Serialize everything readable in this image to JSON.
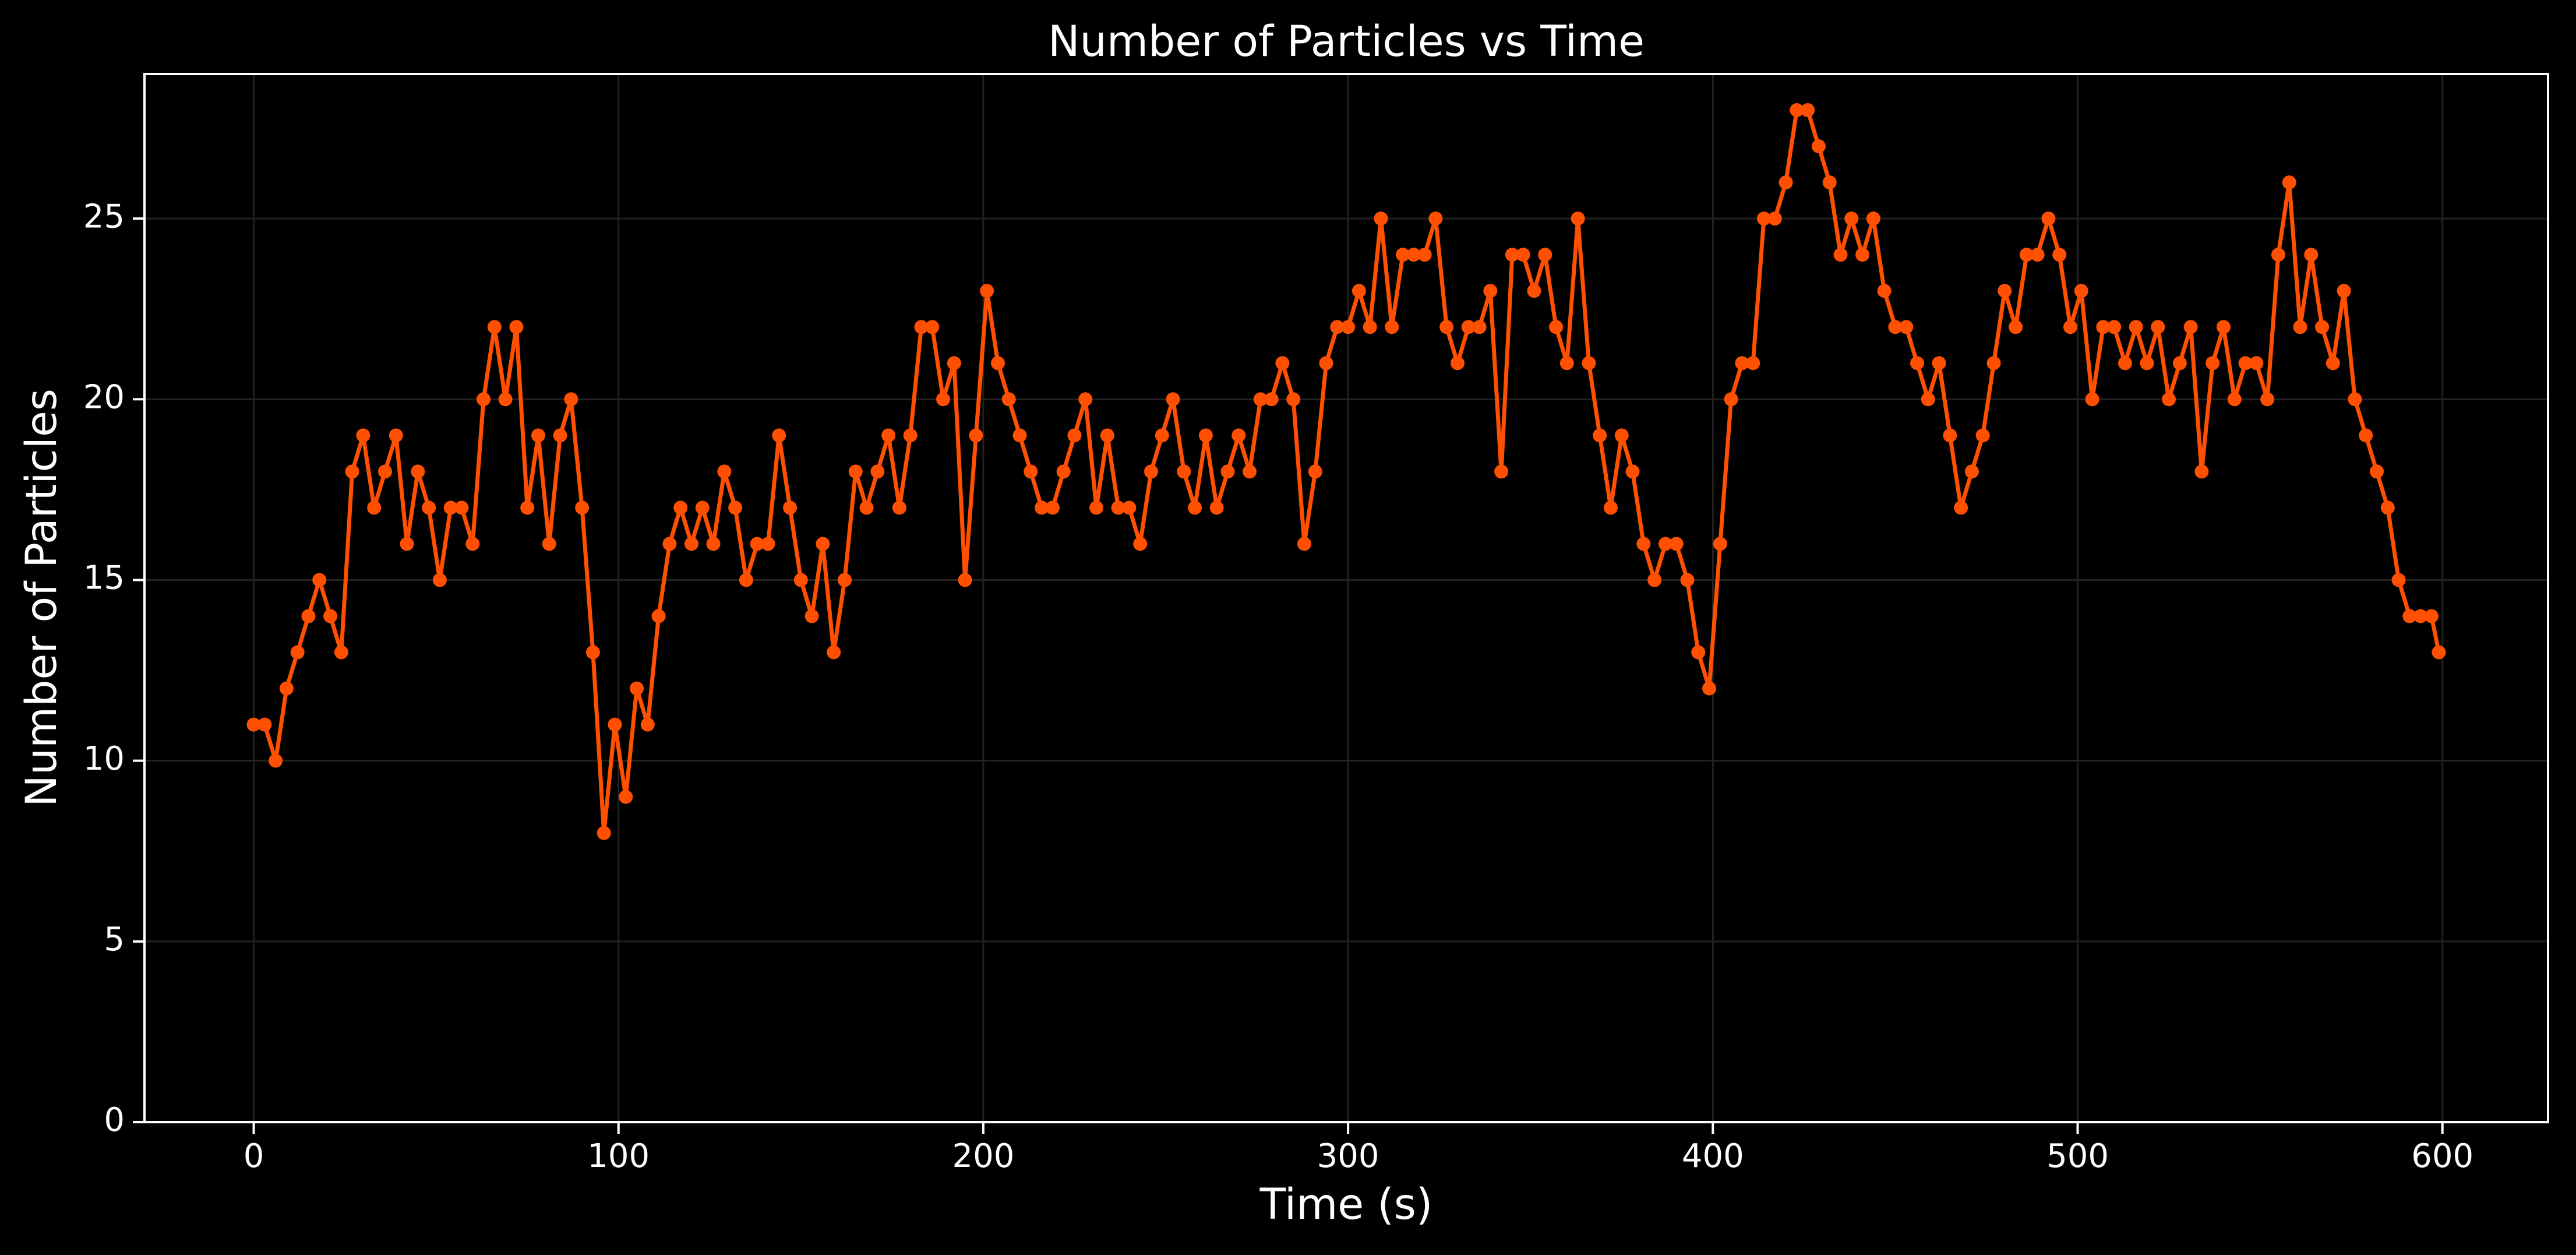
{
  "chart_data": {
    "type": "line",
    "title": "Number of Particles vs Time",
    "x_label": "Time (s)",
    "y_label": "Number of Particles",
    "x": [
      0,
      3,
      6,
      9,
      12,
      15,
      18,
      21,
      24,
      27,
      30,
      33,
      36,
      39,
      42,
      45,
      48,
      51,
      54,
      57,
      60,
      63,
      66,
      69,
      72,
      75,
      78,
      81,
      84,
      87,
      90,
      93,
      96,
      99,
      102,
      105,
      108,
      111,
      114,
      117,
      120,
      123,
      126,
      129,
      132,
      135,
      138,
      141,
      144,
      147,
      150,
      153,
      156,
      159,
      162,
      165,
      168,
      171,
      174,
      177,
      180,
      183,
      186,
      189,
      192,
      195,
      198,
      201,
      204,
      207,
      210,
      213,
      216,
      219,
      222,
      225,
      228,
      231,
      234,
      237,
      240,
      243,
      246,
      249,
      252,
      255,
      258,
      261,
      264,
      267,
      270,
      273,
      276,
      279,
      282,
      285,
      288,
      291,
      294,
      297,
      300,
      303,
      306,
      309,
      312,
      315,
      318,
      321,
      324,
      327,
      330,
      333,
      336,
      339,
      342,
      345,
      348,
      351,
      354,
      357,
      360,
      363,
      366,
      369,
      372,
      375,
      378,
      381,
      384,
      387,
      390,
      393,
      396,
      399,
      402,
      405,
      408,
      411,
      414,
      417,
      420,
      423,
      426,
      429,
      432,
      435,
      438,
      441,
      444,
      447,
      450,
      453,
      456,
      459,
      462,
      465,
      468,
      471,
      474,
      477,
      480,
      483,
      486,
      489,
      492,
      495,
      498,
      501,
      504,
      507,
      510,
      513,
      516,
      519,
      522,
      525,
      528,
      531,
      534,
      537,
      540,
      543,
      546,
      549,
      552,
      555,
      558,
      561,
      564,
      567,
      570,
      573,
      576,
      579,
      582,
      585,
      588,
      591,
      594,
      597,
      599
    ],
    "series": [
      {
        "name": "Particles",
        "color": "#ff4f00",
        "values": [
          11,
          11,
          10,
          12,
          13,
          14,
          15,
          14,
          13,
          18,
          19,
          17,
          18,
          19,
          16,
          18,
          17,
          15,
          17,
          17,
          16,
          20,
          22,
          20,
          22,
          17,
          19,
          16,
          19,
          20,
          17,
          13,
          8,
          11,
          9,
          12,
          11,
          14,
          16,
          17,
          16,
          17,
          16,
          18,
          17,
          15,
          16,
          16,
          19,
          17,
          15,
          14,
          16,
          13,
          15,
          18,
          17,
          18,
          19,
          17,
          19,
          22,
          22,
          20,
          21,
          15,
          19,
          23,
          21,
          20,
          19,
          18,
          17,
          17,
          18,
          19,
          20,
          17,
          19,
          17,
          17,
          16,
          18,
          19,
          20,
          18,
          17,
          19,
          17,
          18,
          19,
          18,
          20,
          20,
          21,
          20,
          16,
          18,
          21,
          22,
          22,
          23,
          22,
          25,
          22,
          24,
          24,
          24,
          25,
          22,
          21,
          22,
          22,
          23,
          18,
          24,
          24,
          23,
          24,
          22,
          21,
          25,
          21,
          19,
          17,
          19,
          18,
          16,
          15,
          16,
          16,
          15,
          13,
          12,
          16,
          20,
          21,
          21,
          25,
          25,
          26,
          28,
          28,
          27,
          26,
          24,
          25,
          24,
          25,
          23,
          22,
          22,
          21,
          20,
          21,
          19,
          17,
          18,
          19,
          21,
          23,
          22,
          24,
          24,
          25,
          24,
          22,
          23,
          20,
          22,
          22,
          21,
          22,
          21,
          22,
          20,
          21,
          22,
          18,
          21,
          22,
          20,
          21,
          21,
          20,
          24,
          26,
          22,
          24,
          22,
          21,
          23,
          20,
          19,
          18,
          17,
          15,
          14,
          14,
          14,
          13
        ]
      }
    ],
    "xlim": [
      -29.95,
      628.95
    ],
    "ylim": [
      0,
      29
    ],
    "xticks": [
      0,
      100,
      200,
      300,
      400,
      500,
      600
    ],
    "yticks": [
      0,
      5,
      10,
      15,
      20,
      25
    ],
    "grid": true
  }
}
